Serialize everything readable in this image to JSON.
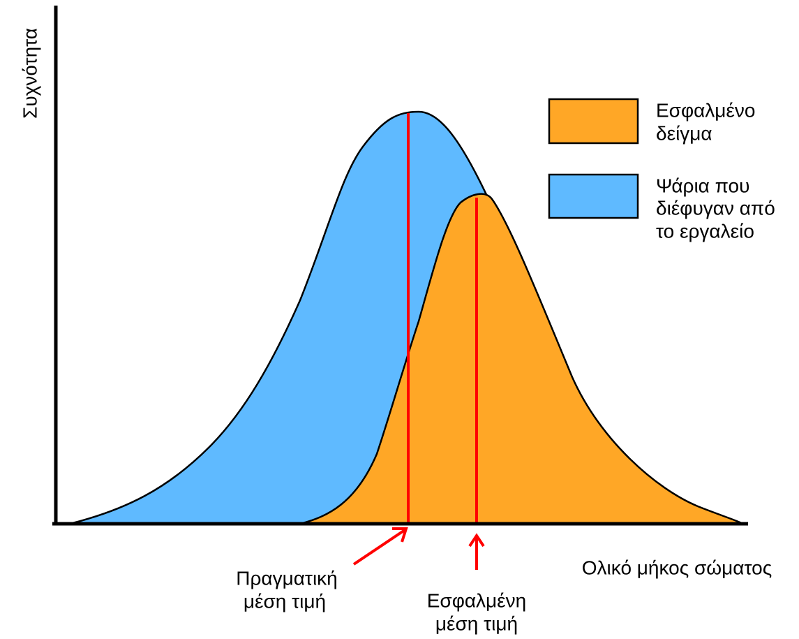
{
  "y_axis_label": "Συχνότητα",
  "x_axis_label": "Ολικό μήκος σώματος",
  "legend": [
    {
      "lines": [
        "Εσφαλμένο",
        "δείγμα"
      ]
    },
    {
      "lines": [
        "Ψάρια που",
        "διέφυγαν από",
        "το εργαλείο"
      ]
    }
  ],
  "annotations": [
    {
      "lines": [
        "Πραγματική",
        "μέση τιμή"
      ]
    },
    {
      "lines": [
        "Εσφαλμένη",
        "μέση τιμή"
      ]
    }
  ]
}
